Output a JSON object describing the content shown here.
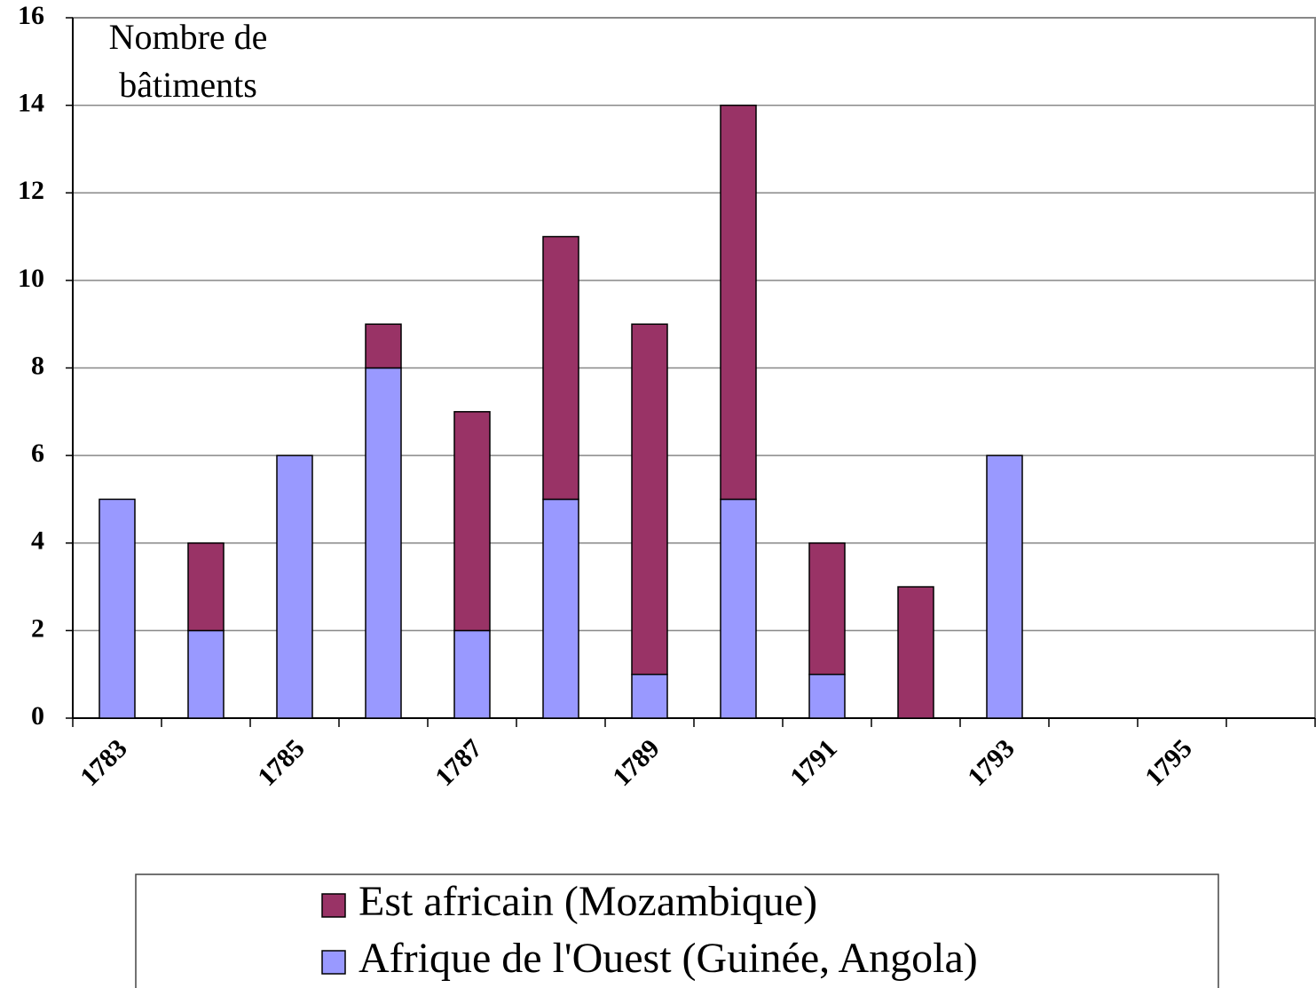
{
  "chart_data": {
    "type": "stacked_bar",
    "ylabel": [
      "Nombre de",
      "bâtiments"
    ],
    "categories": [
      "1783",
      null,
      "1785",
      null,
      "1787",
      null,
      "1789",
      null,
      "1791",
      null,
      "1793",
      null,
      "1795",
      null
    ],
    "series": [
      {
        "name": "Afrique de l'Ouest (Guinée, Angola)",
        "color": "#9999ff",
        "values": [
          5,
          2,
          6,
          8,
          2,
          5,
          1,
          5,
          1,
          0,
          6,
          null,
          null,
          null
        ]
      },
      {
        "name": "Est africain (Mozambique)",
        "color": "#993366",
        "values": [
          0,
          2,
          0,
          1,
          5,
          6,
          8,
          9,
          3,
          3,
          0,
          null,
          null,
          null
        ]
      }
    ],
    "ylim": [
      0,
      16
    ],
    "yticks": [
      0,
      2,
      4,
      6,
      8,
      10,
      12,
      14,
      16
    ],
    "grid": true
  }
}
